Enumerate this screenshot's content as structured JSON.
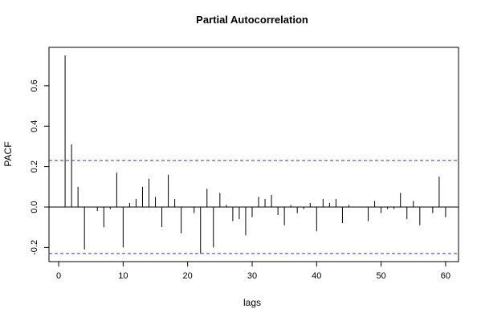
{
  "chart_data": {
    "type": "bar",
    "title": "Partial Autocorrelation",
    "xlabel": "lags",
    "ylabel": "PACF",
    "xlim": [
      -1.5,
      62
    ],
    "ylim": [
      -0.27,
      0.79
    ],
    "x_ticks": [
      0,
      10,
      20,
      30,
      40,
      50,
      60
    ],
    "y_ticks": [
      -0.2,
      0.0,
      0.2,
      0.4,
      0.6
    ],
    "y_tick_labels": [
      "-0.2",
      "0.0",
      "0.2",
      "0.4",
      "0.6"
    ],
    "x_tick_labels": [
      "0",
      "10",
      "20",
      "30",
      "40",
      "50",
      "60"
    ],
    "confidence_bound": 0.23,
    "grid": false,
    "colors": {
      "bars": "#000000",
      "bounds": "#3a3aa8",
      "zero_line": "#000000"
    },
    "lags": [
      1,
      2,
      3,
      4,
      5,
      6,
      7,
      8,
      9,
      10,
      11,
      12,
      13,
      14,
      15,
      16,
      17,
      18,
      19,
      20,
      21,
      22,
      23,
      24,
      25,
      26,
      27,
      28,
      29,
      30,
      31,
      32,
      33,
      34,
      35,
      36,
      37,
      38,
      39,
      40,
      41,
      42,
      43,
      44,
      45,
      46,
      47,
      48,
      49,
      50,
      51,
      52,
      53,
      54,
      55,
      56,
      57,
      58,
      59,
      60
    ],
    "values": [
      0.75,
      0.31,
      0.1,
      -0.21,
      0.0,
      -0.02,
      -0.1,
      -0.01,
      0.17,
      -0.2,
      0.02,
      0.04,
      0.1,
      0.14,
      0.05,
      -0.1,
      0.16,
      0.04,
      -0.13,
      0.0,
      -0.03,
      -0.23,
      0.09,
      -0.2,
      0.07,
      0.01,
      -0.07,
      -0.06,
      -0.14,
      -0.05,
      0.05,
      0.04,
      0.06,
      -0.04,
      -0.09,
      0.01,
      -0.03,
      -0.01,
      0.02,
      -0.12,
      0.04,
      0.02,
      0.04,
      -0.08,
      0.01,
      0.0,
      0.0,
      -0.07,
      0.03,
      -0.03,
      -0.01,
      -0.01,
      0.07,
      -0.06,
      0.03,
      -0.09,
      0.0,
      -0.03,
      0.15,
      -0.05
    ]
  }
}
